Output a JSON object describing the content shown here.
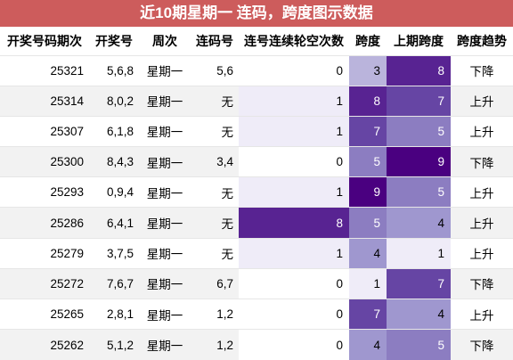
{
  "title": "近10期星期一 连码，跨度图示数据",
  "headers": [
    "开奖号码期次",
    "开奖号",
    "周次",
    "连码号",
    "连号连续轮空次数",
    "跨度",
    "上期跨度",
    "跨度趋势"
  ],
  "rows": [
    {
      "issue": "25321",
      "numbers": "5,6,8",
      "weekday": "星期一",
      "consecutive": "5,6",
      "miss": "0",
      "span": "3",
      "prev_span": "8",
      "trend": "下降"
    },
    {
      "issue": "25314",
      "numbers": "8,0,2",
      "weekday": "星期一",
      "consecutive": "无",
      "miss": "1",
      "span": "8",
      "prev_span": "7",
      "trend": "上升"
    },
    {
      "issue": "25307",
      "numbers": "6,1,8",
      "weekday": "星期一",
      "consecutive": "无",
      "miss": "1",
      "span": "7",
      "prev_span": "5",
      "trend": "上升"
    },
    {
      "issue": "25300",
      "numbers": "8,4,3",
      "weekday": "星期一",
      "consecutive": "3,4",
      "miss": "0",
      "span": "5",
      "prev_span": "9",
      "trend": "下降"
    },
    {
      "issue": "25293",
      "numbers": "0,9,4",
      "weekday": "星期一",
      "consecutive": "无",
      "miss": "1",
      "span": "9",
      "prev_span": "5",
      "trend": "上升"
    },
    {
      "issue": "25286",
      "numbers": "6,4,1",
      "weekday": "星期一",
      "consecutive": "无",
      "miss": "8",
      "span": "5",
      "prev_span": "4",
      "trend": "上升"
    },
    {
      "issue": "25279",
      "numbers": "3,7,5",
      "weekday": "星期一",
      "consecutive": "无",
      "miss": "1",
      "span": "4",
      "prev_span": "1",
      "trend": "上升"
    },
    {
      "issue": "25272",
      "numbers": "7,6,7",
      "weekday": "星期一",
      "consecutive": "6,7",
      "miss": "0",
      "span": "1",
      "prev_span": "7",
      "trend": "下降"
    },
    {
      "issue": "25265",
      "numbers": "2,8,1",
      "weekday": "星期一",
      "consecutive": "1,2",
      "miss": "0",
      "span": "7",
      "prev_span": "4",
      "trend": "上升"
    },
    {
      "issue": "25262",
      "numbers": "5,1,2",
      "weekday": "星期一",
      "consecutive": "1,2",
      "miss": "0",
      "span": "4",
      "prev_span": "5",
      "trend": "下降"
    }
  ],
  "colors": {
    "title_bg": "#cd5c5c",
    "heat_low": "#f2effa",
    "heat_high": "#4a0080"
  }
}
